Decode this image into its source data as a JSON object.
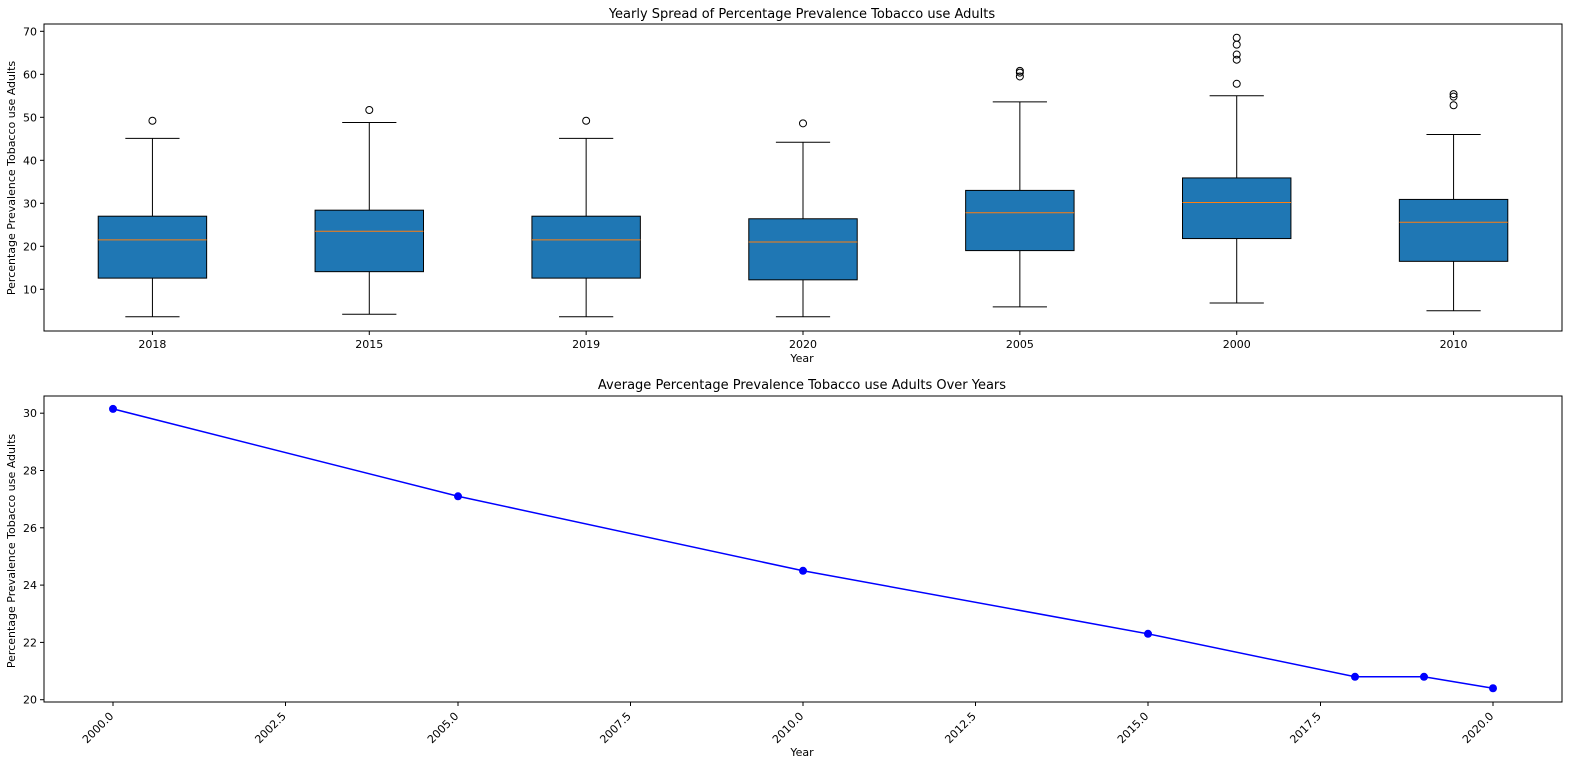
{
  "chart_data": [
    {
      "type": "box",
      "title": "Yearly Spread of Percentage Prevalence Tobacco use Adults",
      "xlabel": "Year",
      "ylabel": "Percentage Prevalence Tobacco use Adults",
      "ylim": [
        0.3,
        71.7
      ],
      "yticks": [
        10,
        20,
        30,
        40,
        50,
        60,
        70
      ],
      "box_color": "#1f77b4",
      "median_color": "#ff7f0e",
      "grid": false,
      "categories": [
        "2018",
        "2015",
        "2019",
        "2020",
        "2005",
        "2000",
        "2010"
      ],
      "boxes": [
        {
          "whisker_low": 3.6,
          "q1": 12.6,
          "median": 21.5,
          "q3": 27.0,
          "whisker_high": 45.1,
          "outliers": [
            49.2
          ]
        },
        {
          "whisker_low": 4.2,
          "q1": 14.1,
          "median": 23.5,
          "q3": 28.4,
          "whisker_high": 48.8,
          "outliers": [
            51.7
          ]
        },
        {
          "whisker_low": 3.6,
          "q1": 12.6,
          "median": 21.5,
          "q3": 27.0,
          "whisker_high": 45.1,
          "outliers": [
            49.2
          ]
        },
        {
          "whisker_low": 3.6,
          "q1": 12.2,
          "median": 21.0,
          "q3": 26.4,
          "whisker_high": 44.2,
          "outliers": [
            48.6
          ]
        },
        {
          "whisker_low": 5.9,
          "q1": 19.0,
          "median": 27.8,
          "q3": 33.0,
          "whisker_high": 53.6,
          "outliers": [
            59.5,
            60.4,
            60.8
          ]
        },
        {
          "whisker_low": 6.8,
          "q1": 21.8,
          "median": 30.2,
          "q3": 35.9,
          "whisker_high": 55.0,
          "outliers": [
            57.8,
            63.4,
            64.6,
            66.9,
            68.5
          ]
        },
        {
          "whisker_low": 5.0,
          "q1": 16.5,
          "median": 25.6,
          "q3": 30.9,
          "whisker_high": 46.0,
          "outliers": [
            52.8,
            54.8,
            55.4
          ]
        }
      ]
    },
    {
      "type": "line",
      "title": "Average Percentage Prevalence Tobacco use Adults Over Years",
      "xlabel": "Year",
      "ylabel": "Percentage Prevalence Tobacco use Adults",
      "xlim": [
        1999.0,
        2021.0
      ],
      "ylim": [
        19.92,
        30.6
      ],
      "xticks": [
        2000.0,
        2002.5,
        2005.0,
        2007.5,
        2010.0,
        2012.5,
        2015.0,
        2017.5,
        2020.0
      ],
      "xtick_labels": [
        "2000.0",
        "2002.5",
        "2005.0",
        "2007.5",
        "2010.0",
        "2012.5",
        "2015.0",
        "2017.5",
        "2020.0"
      ],
      "xtick_rotation_deg": 45,
      "yticks": [
        20,
        22,
        24,
        26,
        28,
        30
      ],
      "line_color": "#0000ff",
      "marker": "circle",
      "grid": false,
      "series": [
        {
          "x": [
            2000,
            2005,
            2010,
            2015,
            2018,
            2019,
            2020
          ],
          "y": [
            30.15,
            27.1,
            24.5,
            22.3,
            20.8,
            20.8,
            20.4
          ]
        }
      ]
    }
  ]
}
